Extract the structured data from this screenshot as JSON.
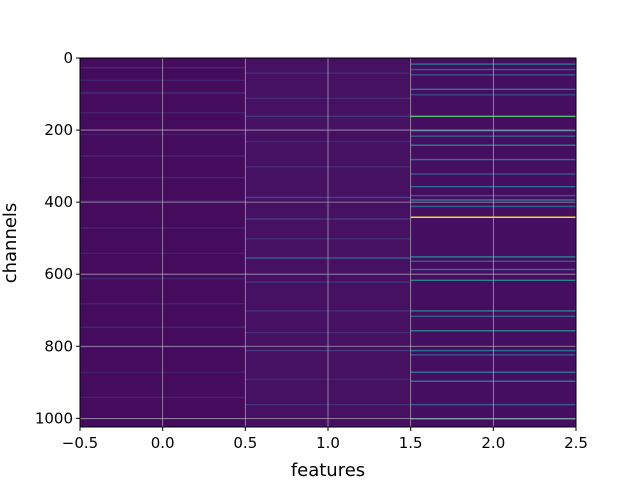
{
  "chart_data": {
    "type": "heatmap",
    "title": "",
    "xlabel": "features",
    "ylabel": "channels",
    "xlim": [
      -0.5,
      2.5
    ],
    "ylim": [
      1024,
      0
    ],
    "y_inverted": true,
    "grid": true,
    "colormap": "viridis",
    "x_ticks": [
      -0.5,
      0.0,
      0.5,
      1.0,
      1.5,
      2.0,
      2.5
    ],
    "x_tick_labels": [
      "−0.5",
      "0.0",
      "0.5",
      "1.0",
      "1.5",
      "2.0",
      "2.5"
    ],
    "y_ticks": [
      0,
      200,
      400,
      600,
      800,
      1000
    ],
    "y_tick_labels": [
      "0",
      "200",
      "400",
      "600",
      "800",
      "1000"
    ],
    "columns": [
      {
        "feature": 0,
        "base_value": 0.04,
        "highlights": [
          {
            "channel": 25,
            "value": 0.13
          },
          {
            "channel": 60,
            "value": 0.11
          },
          {
            "channel": 95,
            "value": 0.15
          },
          {
            "channel": 150,
            "value": 0.12
          },
          {
            "channel": 210,
            "value": 0.1
          },
          {
            "channel": 270,
            "value": 0.13
          },
          {
            "channel": 330,
            "value": 0.12
          },
          {
            "channel": 395,
            "value": 0.11
          },
          {
            "channel": 470,
            "value": 0.12
          },
          {
            "channel": 540,
            "value": 0.1
          },
          {
            "channel": 610,
            "value": 0.13
          },
          {
            "channel": 680,
            "value": 0.11
          },
          {
            "channel": 745,
            "value": 0.14
          },
          {
            "channel": 800,
            "value": 0.12
          },
          {
            "channel": 870,
            "value": 0.11
          },
          {
            "channel": 940,
            "value": 0.12
          },
          {
            "channel": 1000,
            "value": 0.1
          }
        ]
      },
      {
        "feature": 1,
        "base_value": 0.06,
        "highlights": [
          {
            "channel": 40,
            "value": 0.15
          },
          {
            "channel": 110,
            "value": 0.14
          },
          {
            "channel": 160,
            "value": 0.18
          },
          {
            "channel": 230,
            "value": 0.14
          },
          {
            "channel": 300,
            "value": 0.15
          },
          {
            "channel": 385,
            "value": 0.22
          },
          {
            "channel": 445,
            "value": 0.18
          },
          {
            "channel": 500,
            "value": 0.16
          },
          {
            "channel": 553,
            "value": 0.3
          },
          {
            "channel": 620,
            "value": 0.16
          },
          {
            "channel": 700,
            "value": 0.17
          },
          {
            "channel": 760,
            "value": 0.15
          },
          {
            "channel": 810,
            "value": 0.18
          },
          {
            "channel": 890,
            "value": 0.14
          },
          {
            "channel": 960,
            "value": 0.16
          }
        ]
      },
      {
        "feature": 2,
        "base_value": 0.05,
        "highlights": [
          {
            "channel": 15,
            "value": 0.38
          },
          {
            "channel": 30,
            "value": 0.3
          },
          {
            "channel": 45,
            "value": 0.28
          },
          {
            "channel": 85,
            "value": 0.4
          },
          {
            "channel": 100,
            "value": 0.22
          },
          {
            "channel": 160,
            "value": 0.72
          },
          {
            "channel": 200,
            "value": 0.35
          },
          {
            "channel": 215,
            "value": 0.3
          },
          {
            "channel": 240,
            "value": 0.45
          },
          {
            "channel": 280,
            "value": 0.38
          },
          {
            "channel": 320,
            "value": 0.28
          },
          {
            "channel": 355,
            "value": 0.35
          },
          {
            "channel": 380,
            "value": 0.3
          },
          {
            "channel": 392,
            "value": 0.42
          },
          {
            "channel": 410,
            "value": 0.32
          },
          {
            "channel": 440,
            "value": 1.0
          },
          {
            "channel": 550,
            "value": 0.45
          },
          {
            "channel": 562,
            "value": 0.3
          },
          {
            "channel": 585,
            "value": 0.38
          },
          {
            "channel": 615,
            "value": 0.45
          },
          {
            "channel": 700,
            "value": 0.42
          },
          {
            "channel": 715,
            "value": 0.3
          },
          {
            "channel": 755,
            "value": 0.45
          },
          {
            "channel": 810,
            "value": 0.38
          },
          {
            "channel": 822,
            "value": 0.3
          },
          {
            "channel": 870,
            "value": 0.4
          },
          {
            "channel": 895,
            "value": 0.42
          },
          {
            "channel": 960,
            "value": 0.28
          },
          {
            "channel": 1000,
            "value": 0.38
          }
        ]
      }
    ]
  }
}
